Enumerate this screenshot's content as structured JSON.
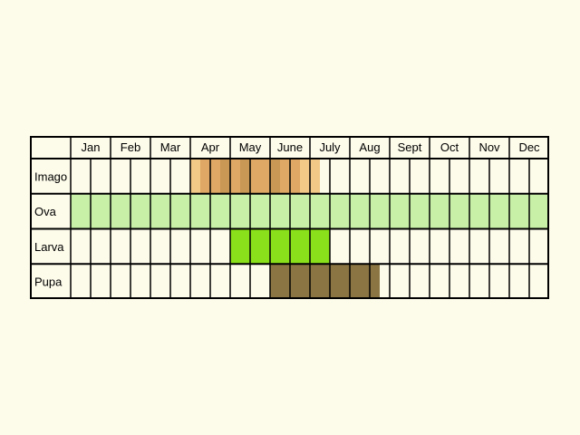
{
  "months": [
    "Jan",
    "Feb",
    "Mar",
    "Apr",
    "May",
    "June",
    "July",
    "Aug",
    "Sept",
    "Oct",
    "Nov",
    "Dec"
  ],
  "stages": [
    {
      "label": "Imago"
    },
    {
      "label": "Ova"
    },
    {
      "label": "Larva"
    },
    {
      "label": "Pupa"
    }
  ],
  "colors": {
    "background": "#fdfbea",
    "cell_empty": "#fdfbea",
    "grid_line": "#000000",
    "imago_light": "#f3c987",
    "imago_mid": "#dfa864",
    "imago_dark": "#c99854",
    "ova": "#c8f0a6",
    "larva": "#8ae01a",
    "pupa": "#8b7542"
  },
  "activity": {
    "Imago": [
      "",
      "",
      "",
      "",
      "",
      "",
      "",
      "",
      "",
      "",
      "",
      "",
      "imago_light",
      "imago_mid",
      "imago_mid",
      "imago_dark",
      "imago_mid",
      "imago_dark",
      "imago_mid",
      "imago_mid",
      "imago_dark",
      "imago_mid",
      "imago_mid",
      "imago_light",
      "imago_light",
      "",
      "",
      "",
      "",
      "",
      "",
      "",
      "",
      "",
      "",
      "",
      "",
      "",
      "",
      "",
      "",
      "",
      "",
      "",
      "",
      "",
      "",
      ""
    ],
    "Ova": [
      "ova",
      "ova",
      "ova",
      "ova",
      "ova",
      "ova",
      "ova",
      "ova",
      "ova",
      "ova",
      "ova",
      "ova",
      "ova",
      "ova",
      "ova",
      "ova",
      "ova",
      "ova",
      "ova",
      "ova",
      "ova",
      "ova",
      "ova",
      "ova",
      "ova",
      "ova",
      "ova",
      "ova",
      "ova",
      "ova",
      "ova",
      "ova",
      "ova",
      "ova",
      "ova",
      "ova",
      "ova",
      "ova",
      "ova",
      "ova",
      "ova",
      "ova",
      "ova",
      "ova",
      "ova",
      "ova",
      "ova",
      "ova"
    ],
    "Larva": [
      "",
      "",
      "",
      "",
      "",
      "",
      "",
      "",
      "",
      "",
      "",
      "",
      "",
      "",
      "",
      "",
      "larva",
      "larva",
      "larva",
      "larva",
      "larva",
      "larva",
      "larva",
      "larva",
      "larva",
      "larva",
      "",
      "",
      "",
      "",
      "",
      "",
      "",
      "",
      "",
      "",
      "",
      "",
      "",
      "",
      "",
      "",
      "",
      "",
      "",
      "",
      "",
      ""
    ],
    "Pupa": [
      "",
      "",
      "",
      "",
      "",
      "",
      "",
      "",
      "",
      "",
      "",
      "",
      "",
      "",
      "",
      "",
      "",
      "",
      "",
      "",
      "pupa",
      "pupa",
      "pupa",
      "pupa",
      "pupa",
      "pupa",
      "pupa",
      "pupa",
      "pupa",
      "pupa",
      "pupa",
      "",
      "",
      "",
      "",
      "",
      "",
      "",
      "",
      "",
      "",
      "",
      "",
      "",
      "",
      "",
      "",
      ""
    ]
  }
}
